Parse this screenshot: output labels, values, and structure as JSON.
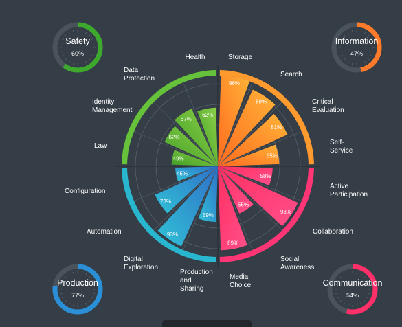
{
  "chart_data": {
    "type": "polar-bar",
    "rmax": 100,
    "groups": [
      {
        "name": "Safety",
        "percent": 60,
        "color": "#66c23a",
        "categories": [
          {
            "label": [
              "Health"
            ],
            "value": 62
          },
          {
            "label": [
              "Data",
              "Protection"
            ],
            "value": 67
          },
          {
            "label": [
              "Identity",
              "Management"
            ],
            "value": 62
          },
          {
            "label": [
              "Law"
            ],
            "value": 49
          }
        ]
      },
      {
        "name": "Information",
        "percent": 47,
        "color": "#ff9a2e",
        "categories": [
          {
            "label": [
              "Storage"
            ],
            "value": 96
          },
          {
            "label": [
              "Search"
            ],
            "value": 89
          },
          {
            "label": [
              "Critical",
              "Evaluation"
            ],
            "value": 81
          },
          {
            "label": [
              "Self-",
              "Service"
            ],
            "value": 65
          }
        ]
      },
      {
        "name": "Communication",
        "percent": 54,
        "color": "#ff3576",
        "categories": [
          {
            "label": [
              "Active",
              "Participation"
            ],
            "value": 58
          },
          {
            "label": [
              "Collaboration"
            ],
            "value": 93
          },
          {
            "label": [
              "Social",
              "Awareness"
            ],
            "value": 55
          },
          {
            "label": [
              "Media",
              "Choice"
            ],
            "value": 89
          }
        ]
      },
      {
        "name": "Production",
        "percent": 77,
        "color": "#29b7d0",
        "categories": [
          {
            "label": [
              "Production",
              "and",
              "Sharing"
            ],
            "value": 59
          },
          {
            "label": [
              "Digital",
              "Exploration"
            ],
            "value": 93
          },
          {
            "label": [
              "Automation"
            ],
            "value": 73
          },
          {
            "label": [
              "Configuration"
            ],
            "value": 45
          }
        ]
      }
    ]
  },
  "gauges": [
    {
      "title": "Safety",
      "value_text": "60%",
      "color": "#3daa2e",
      "track": "#4a535c"
    },
    {
      "title": "Information",
      "value_text": "47%",
      "color": "#ff7a2b",
      "track": "#4a535c"
    },
    {
      "title": "Production",
      "value_text": "77%",
      "color": "#2a8fd6",
      "track": "#4a535c"
    },
    {
      "title": "Communication",
      "value_text": "54%",
      "color": "#ff2f6a",
      "track": "#4a535c"
    }
  ],
  "colors": {
    "background": "#353e47",
    "grid": "#59626b",
    "green": [
      "#3f9d24",
      "#8fd14a"
    ],
    "orange": [
      "#ff6a1f",
      "#ffb338"
    ],
    "pink": [
      "#ff2f62",
      "#ff4f8a"
    ],
    "blue": [
      "#2f6fc8",
      "#30c2d6"
    ]
  }
}
